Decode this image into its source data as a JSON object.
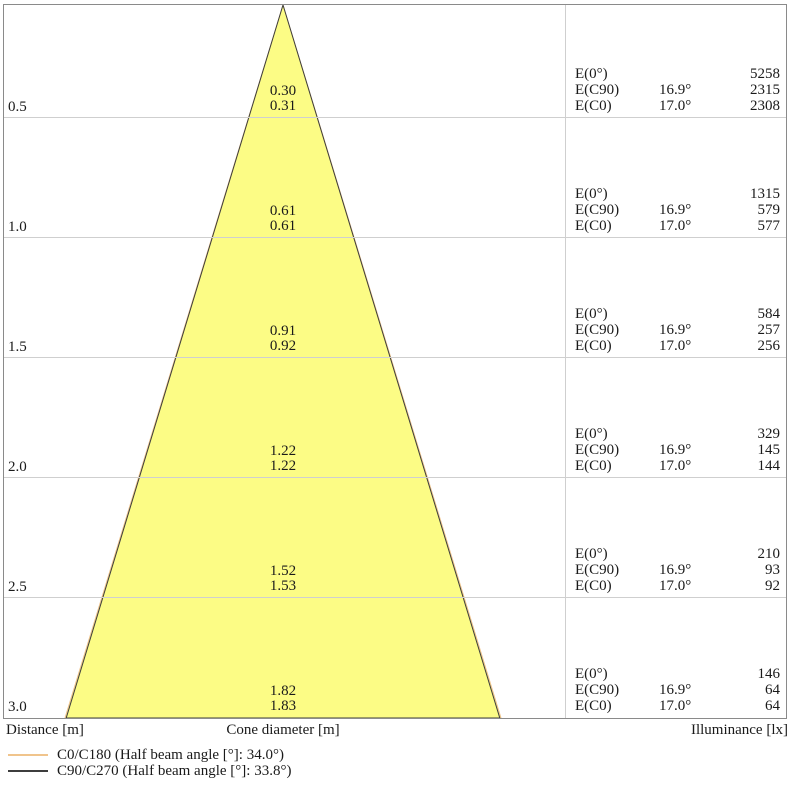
{
  "footer": {
    "distance": "Distance [m]",
    "cone_diameter": "Cone diameter [m]",
    "illuminance": "Illuminance [lx]"
  },
  "legend": [
    {
      "name": "C0/C180",
      "label": "C0/C180 (Half beam angle [°]: 34.0°)",
      "color": "#f0c48c"
    },
    {
      "name": "C90/C270",
      "label": "C90/C270 (Half beam angle [°]: 33.8°)",
      "color": "#3d3d3d"
    }
  ],
  "chart_data": {
    "type": "cone-diagram",
    "title": "Light cone / illuminance diagram",
    "cone_fill_color": "#fcfc85",
    "grid": true,
    "distance_axis_m": [
      "0.5",
      "1.0",
      "1.5",
      "2.0",
      "2.5",
      "3.0"
    ],
    "beam_angles": {
      "c0_c180_full": "34.0°",
      "c90_c270_full": "33.8°"
    },
    "rows": [
      {
        "distance": "0.5",
        "cone_diameters": [
          "0.30",
          "0.31"
        ],
        "illuminance": [
          {
            "plane": "E(0°)",
            "half_angle": "",
            "value": "5258"
          },
          {
            "plane": "E(C90)",
            "half_angle": "16.9°",
            "value": "2315"
          },
          {
            "plane": "E(C0)",
            "half_angle": "17.0°",
            "value": "2308"
          }
        ]
      },
      {
        "distance": "1.0",
        "cone_diameters": [
          "0.61",
          "0.61"
        ],
        "illuminance": [
          {
            "plane": "E(0°)",
            "half_angle": "",
            "value": "1315"
          },
          {
            "plane": "E(C90)",
            "half_angle": "16.9°",
            "value": "579"
          },
          {
            "plane": "E(C0)",
            "half_angle": "17.0°",
            "value": "577"
          }
        ]
      },
      {
        "distance": "1.5",
        "cone_diameters": [
          "0.91",
          "0.92"
        ],
        "illuminance": [
          {
            "plane": "E(0°)",
            "half_angle": "",
            "value": "584"
          },
          {
            "plane": "E(C90)",
            "half_angle": "16.9°",
            "value": "257"
          },
          {
            "plane": "E(C0)",
            "half_angle": "17.0°",
            "value": "256"
          }
        ]
      },
      {
        "distance": "2.0",
        "cone_diameters": [
          "1.22",
          "1.22"
        ],
        "illuminance": [
          {
            "plane": "E(0°)",
            "half_angle": "",
            "value": "329"
          },
          {
            "plane": "E(C90)",
            "half_angle": "16.9°",
            "value": "145"
          },
          {
            "plane": "E(C0)",
            "half_angle": "17.0°",
            "value": "144"
          }
        ]
      },
      {
        "distance": "2.5",
        "cone_diameters": [
          "1.52",
          "1.53"
        ],
        "illuminance": [
          {
            "plane": "E(0°)",
            "half_angle": "",
            "value": "210"
          },
          {
            "plane": "E(C90)",
            "half_angle": "16.9°",
            "value": "93"
          },
          {
            "plane": "E(C0)",
            "half_angle": "17.0°",
            "value": "92"
          }
        ]
      },
      {
        "distance": "3.0",
        "cone_diameters": [
          "1.82",
          "1.83"
        ],
        "illuminance": [
          {
            "plane": "E(0°)",
            "half_angle": "",
            "value": "146"
          },
          {
            "plane": "E(C90)",
            "half_angle": "16.9°",
            "value": "64"
          },
          {
            "plane": "E(C0)",
            "half_angle": "17.0°",
            "value": "64"
          }
        ]
      }
    ]
  }
}
